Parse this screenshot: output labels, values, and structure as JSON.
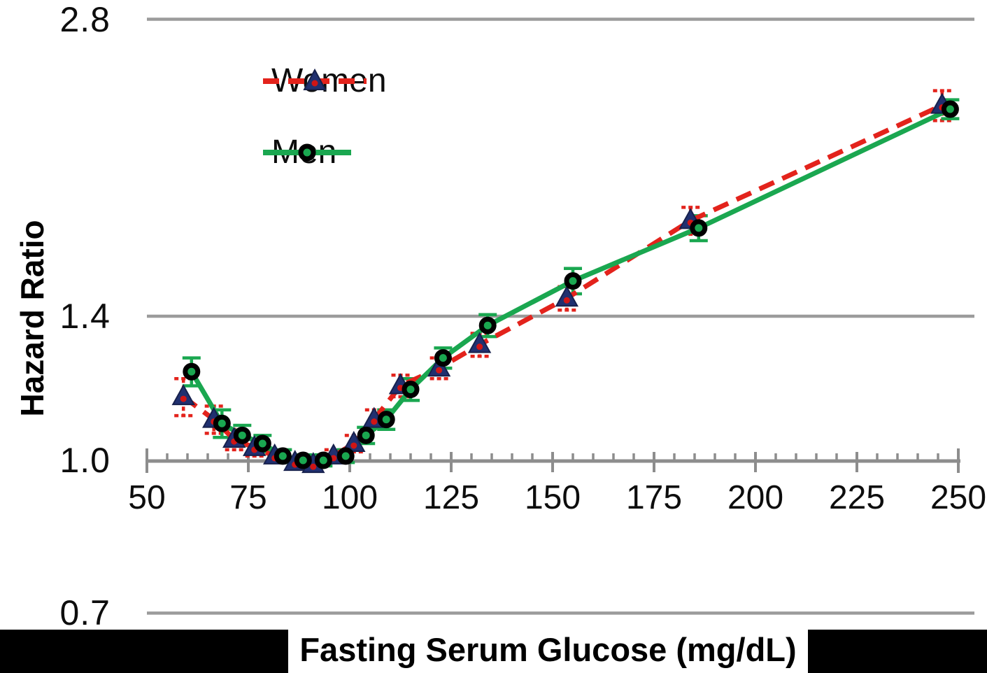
{
  "chart_data": {
    "type": "line",
    "title": "",
    "xlabel": "Fasting Serum Glucose (mg/dL)",
    "ylabel": "Hazard Ratio",
    "x_axis": {
      "min": 50,
      "max": 250,
      "major_ticks": [
        50,
        75,
        100,
        125,
        150,
        175,
        200,
        225,
        250
      ],
      "major_tick_labels": [
        "50",
        "75",
        "100",
        "125",
        "150",
        "175",
        "200",
        "225",
        "250"
      ],
      "minor_tick_step": 5
    },
    "y_axis": {
      "scale": "log",
      "tick_values": [
        2.8,
        1.4,
        1.0,
        0.7
      ],
      "tick_labels": [
        "2.8",
        "1.4",
        "1.0",
        "0.7"
      ],
      "gridline_values": [
        2.8,
        1.4,
        0.7
      ],
      "baseline_value": 1.0
    },
    "legend": {
      "position": "upper-left-inside",
      "entries": [
        "Women",
        "Men"
      ]
    },
    "series": [
      {
        "name": "Women",
        "line_color": "#e3231c",
        "line_style": "dashed",
        "marker": "triangle",
        "marker_fill": "#203070",
        "marker_dot": "#d01515",
        "error_bar_style": "dashed",
        "points_note": "[glucose mg/dL, hazard ratio, +/- error]",
        "points": [
          [
            59,
            1.16,
            0.05
          ],
          [
            66.5,
            1.1,
            0.035
          ],
          [
            71.5,
            1.05,
            0.025
          ],
          [
            76.5,
            1.03,
            0.02
          ],
          [
            81.5,
            1.01,
            0.015
          ],
          [
            86.5,
            0.995,
            0.013
          ],
          [
            91,
            0.99,
            0.013
          ],
          [
            96,
            1.01,
            0.015
          ],
          [
            101,
            1.04,
            0.02
          ],
          [
            106,
            1.1,
            0.025
          ],
          [
            112.5,
            1.19,
            0.03
          ],
          [
            122,
            1.24,
            0.03
          ],
          [
            132,
            1.31,
            0.035
          ],
          [
            153.5,
            1.46,
            0.04
          ],
          [
            184,
            1.75,
            0.055
          ],
          [
            246,
            2.29,
            0.08
          ]
        ]
      },
      {
        "name": "Men",
        "line_color": "#1aa750",
        "line_style": "solid",
        "marker": "circle",
        "marker_fill": "#1aa750",
        "marker_ring": "#000000",
        "error_bar_style": "solid",
        "points_note": "[glucose mg/dL, hazard ratio, +/- error]",
        "points": [
          [
            61,
            1.23,
            0.04
          ],
          [
            68.5,
            1.09,
            0.035
          ],
          [
            73.5,
            1.06,
            0.025
          ],
          [
            78.5,
            1.04,
            0.02
          ],
          [
            83.5,
            1.01,
            0.015
          ],
          [
            88.5,
            1.0,
            0.013
          ],
          [
            93.5,
            1.0,
            0.013
          ],
          [
            99,
            1.01,
            0.015
          ],
          [
            104,
            1.06,
            0.02
          ],
          [
            109,
            1.1,
            0.025
          ],
          [
            115,
            1.18,
            0.03
          ],
          [
            123,
            1.27,
            0.03
          ],
          [
            134,
            1.37,
            0.035
          ],
          [
            155,
            1.52,
            0.045
          ],
          [
            186,
            1.72,
            0.05
          ],
          [
            248,
            2.27,
            0.05
          ]
        ]
      }
    ],
    "colors": {
      "gridline_gray": "#9b9b9b",
      "axis_gray": "#8d8d8d",
      "tick_gray": "#8d8d8d",
      "redaction_black": "#000000"
    }
  }
}
